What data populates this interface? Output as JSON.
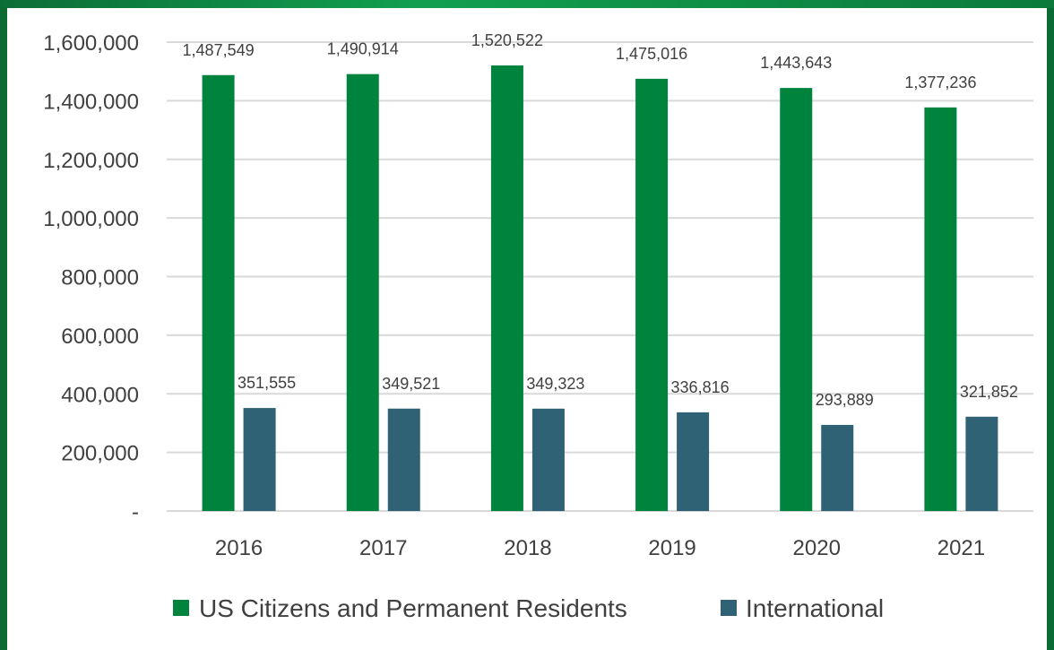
{
  "chart_data": {
    "type": "bar",
    "categories": [
      "2016",
      "2017",
      "2018",
      "2019",
      "2020",
      "2021"
    ],
    "series": [
      {
        "name": "US Citizens and Permanent Residents",
        "color": "#00843d",
        "values": [
          1487549,
          1490914,
          1520522,
          1475016,
          1443643,
          1377236
        ],
        "labels": [
          "1,487,549",
          "1,490,914",
          "1,520,522",
          "1,475,016",
          "1,443,643",
          "1,377,236"
        ]
      },
      {
        "name": "International",
        "color": "#2f6275",
        "values": [
          351555,
          349521,
          349323,
          336816,
          293889,
          321852
        ],
        "labels": [
          "351,555",
          "349,521",
          "349,323",
          "336,816",
          "293,889",
          "321,852"
        ]
      }
    ],
    "ylim": [
      0,
      1600000
    ],
    "yticks": [
      0,
      200000,
      400000,
      600000,
      800000,
      1000000,
      1200000,
      1400000,
      1600000
    ],
    "ytick_labels": [
      "-",
      "200,000",
      "400,000",
      "600,000",
      "800,000",
      "1,000,000",
      "1,200,000",
      "1,400,000",
      "1,600,000"
    ],
    "xlabel": "",
    "ylabel": "",
    "grid": true,
    "legend_position": "bottom"
  }
}
